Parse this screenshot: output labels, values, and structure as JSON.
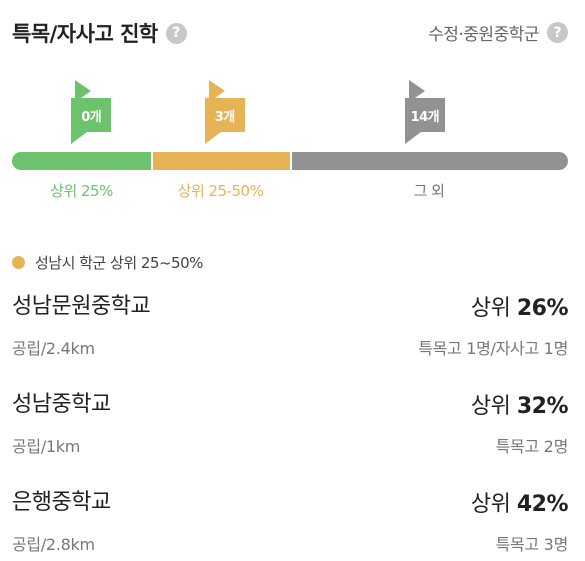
{
  "header": {
    "title": "특목/자사고 진학",
    "help_symbol": "?",
    "school_link": "수정·중원중학군"
  },
  "distribution": {
    "segments": [
      {
        "flag_label": "0개",
        "range_label": "상위 25%",
        "color": "#6cc36b",
        "label_color": "#6cc36b",
        "share": 0.25,
        "marker": 0.13
      },
      {
        "flag_label": "3개",
        "range_label": "상위 25-50%",
        "color": "#e6b457",
        "label_color": "#e6b457",
        "share": 0.25,
        "marker": 0.37
      },
      {
        "flag_label": "14개",
        "range_label": "그 외",
        "color": "#929292",
        "label_color": "#777777",
        "share": 0.5,
        "marker": 0.73
      }
    ]
  },
  "legend": {
    "dot_color": "#e6b457",
    "text": "성남시 학군 상위 25~50%"
  },
  "schools": [
    {
      "name": "성남문원중학교",
      "rank_prefix": "상위 ",
      "rank_value": "26%",
      "type_distance": "공립/2.4km",
      "stat": "특목고 1명/자사고 1명"
    },
    {
      "name": "성남중학교",
      "rank_prefix": "상위 ",
      "rank_value": "32%",
      "type_distance": "공립/1km",
      "stat": "특목고 2명"
    },
    {
      "name": "은행중학교",
      "rank_prefix": "상위 ",
      "rank_value": "42%",
      "type_distance": "공립/2.8km",
      "stat": "특목고 3명"
    }
  ]
}
